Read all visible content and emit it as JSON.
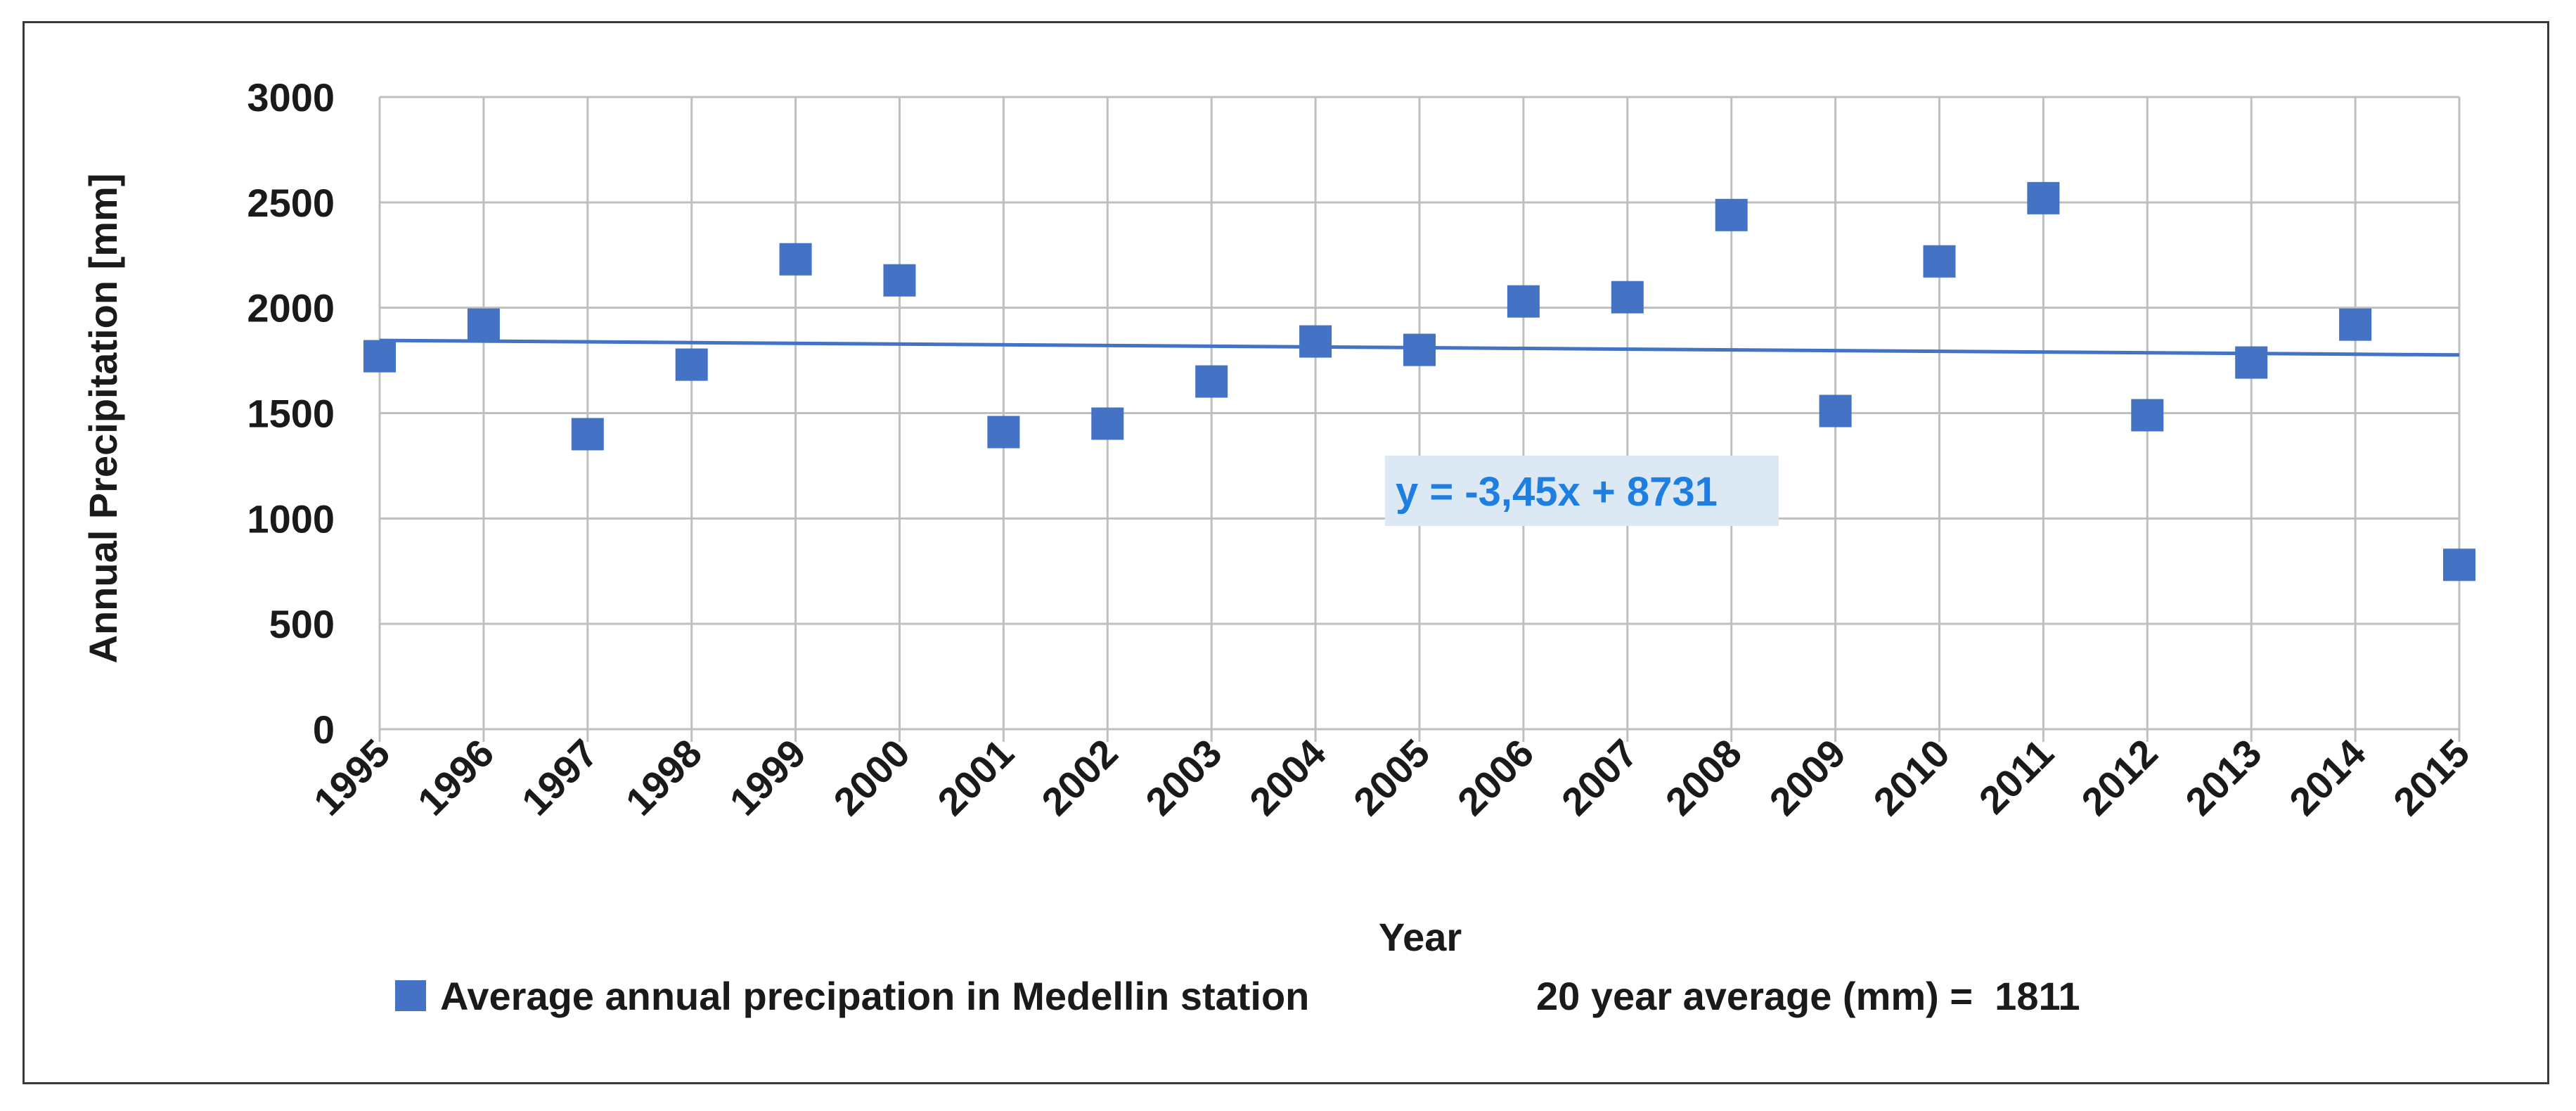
{
  "chart_data": {
    "type": "scatter",
    "title": "",
    "xlabel": "Year",
    "ylabel": "Annual Precipitation [mm]",
    "x": [
      1995,
      1996,
      1997,
      1998,
      1999,
      2000,
      2001,
      2002,
      2003,
      2004,
      2005,
      2006,
      2007,
      2008,
      2009,
      2010,
      2011,
      2012,
      2013,
      2014,
      2015
    ],
    "y_ticks": [
      "0",
      "500",
      "1000",
      "1500",
      "2000",
      "2500",
      "3000"
    ],
    "x_ticks": [
      "1995",
      "1996",
      "1997",
      "1998",
      "1999",
      "2000",
      "2001",
      "2002",
      "2003",
      "2004",
      "2005",
      "2006",
      "2007",
      "2008",
      "2009",
      "2010",
      "2011",
      "2012",
      "2013",
      "2014",
      "2015"
    ],
    "xlim": [
      1995,
      2015
    ],
    "ylim": [
      0,
      3000
    ],
    "grid": true,
    "series": [
      {
        "name": "Average annual precipation in Medellin station",
        "marker": "square",
        "color": "#4472C4",
        "values": [
          1770,
          1920,
          1400,
          1730,
          2230,
          2130,
          1410,
          1450,
          1650,
          1840,
          1800,
          2030,
          2050,
          2440,
          1510,
          2220,
          2520,
          1490,
          1740,
          1920,
          780
        ]
      }
    ],
    "trendline": {
      "type": "linear",
      "equation": "y = -3,45x + 8731",
      "start": [
        1995,
        1845
      ],
      "end": [
        2015,
        1776
      ],
      "color": "#4472C4",
      "label_color": "#1F7FE0",
      "label_bg": "#DCE9F5"
    },
    "legend": {
      "position": "bottom",
      "series_label": "Average annual precipation in Medellin station",
      "note": "20 year average (mm) =  1811"
    }
  }
}
